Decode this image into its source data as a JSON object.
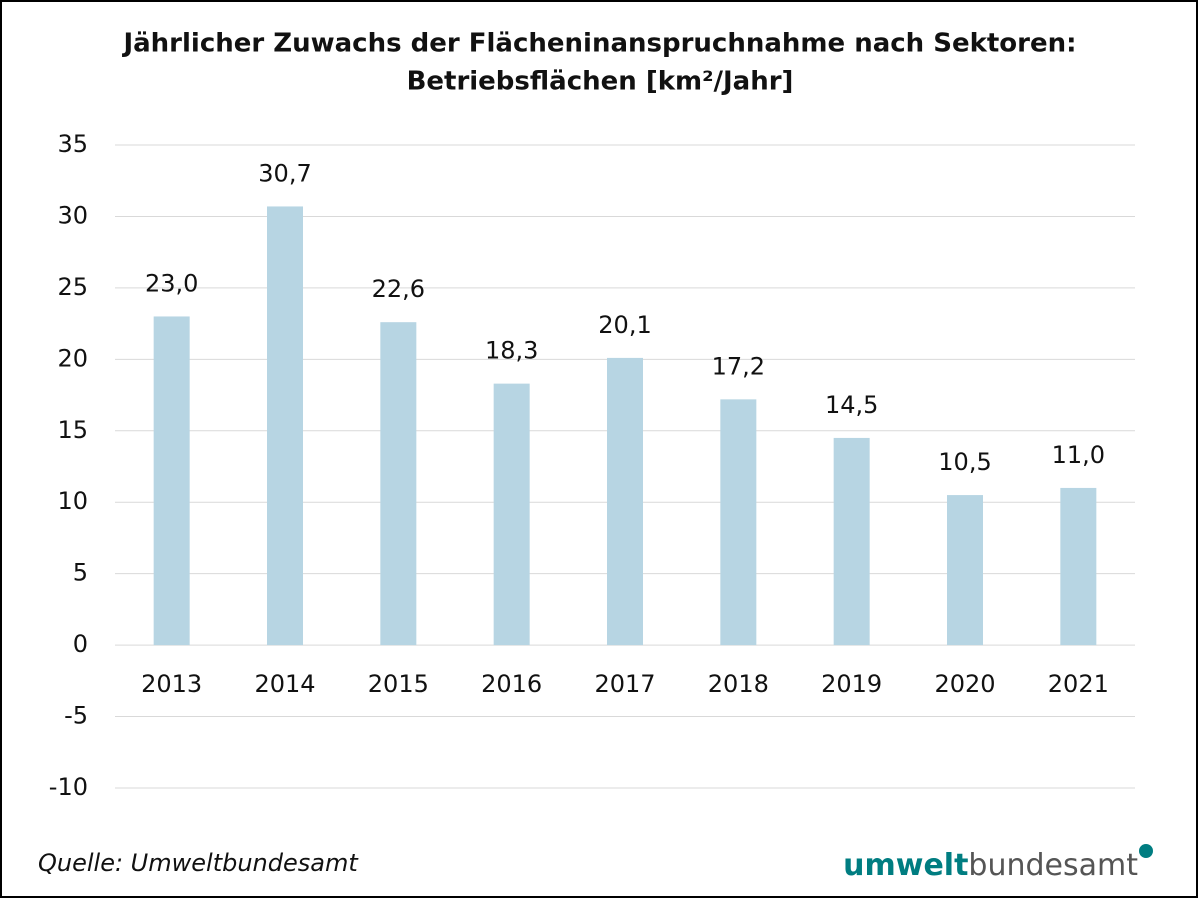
{
  "chart_data": {
    "type": "bar",
    "title": [
      "Jährlicher Zuwachs der Flächeninanspruchnahme nach Sektoren:",
      "Betriebsflächen [km²/Jahr]"
    ],
    "categories": [
      "2013",
      "2014",
      "2015",
      "2016",
      "2017",
      "2018",
      "2019",
      "2020",
      "2021"
    ],
    "values": [
      23.0,
      30.7,
      22.6,
      18.3,
      20.1,
      17.2,
      14.5,
      10.5,
      11.0
    ],
    "value_labels": [
      "23,0",
      "30,7",
      "22,6",
      "18,3",
      "20,1",
      "17,2",
      "14,5",
      "10,5",
      "11,0"
    ],
    "color": "#b7d5e3",
    "ylim": [
      -10,
      35
    ],
    "yticks": [
      -10,
      -5,
      0,
      5,
      10,
      15,
      20,
      25,
      30,
      35
    ],
    "grid": true,
    "source": "Quelle: Umweltbundesamt",
    "logo": [
      "umwelt",
      "bundesamt"
    ]
  }
}
